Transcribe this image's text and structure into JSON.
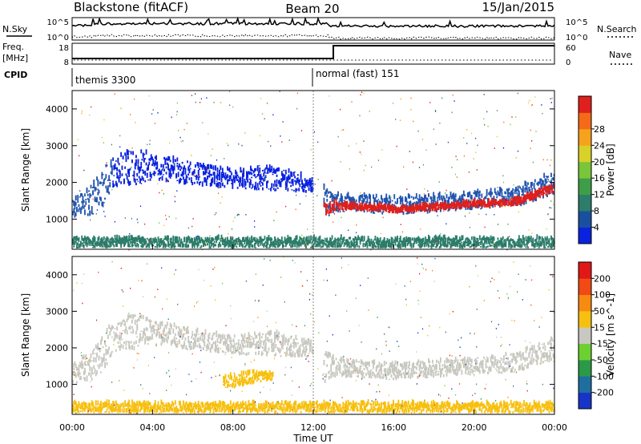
{
  "header": {
    "station": "Blackstone (fitACF)",
    "beam": "Beam 20",
    "date": "15/Jan/2015"
  },
  "strips": {
    "nsky_label": "N.Sky",
    "nsearch_label": "N.Search",
    "noise_ticks_left": [
      "10^5",
      "10^0"
    ],
    "noise_ticks_right": [
      "10^5",
      "10^0"
    ],
    "freq_label": "Freq.",
    "freq_unit": "[MHz]",
    "freq_ticks": [
      "18",
      "8"
    ],
    "nave_label": "Nave",
    "nave_ticks": [
      "60",
      "0"
    ],
    "cpid_label": "CPID",
    "cpid_segments": [
      {
        "start_h": 0,
        "end_h": 12.0,
        "name": "themis 3300"
      },
      {
        "start_h": 12.0,
        "end_h": 24,
        "name": "normal (fast) 151"
      }
    ]
  },
  "chart_data": [
    {
      "type": "heatmap",
      "panel": "power",
      "xlabel": "",
      "ylabel": "Slant Range [km]",
      "xlim": [
        0,
        24
      ],
      "ylim": [
        180,
        4500
      ],
      "yticks": [
        "1000",
        "2000",
        "3000",
        "4000"
      ],
      "colorbar_label": "Power [dB]",
      "colorbar_ticks": [
        "4",
        "8",
        "12",
        "16",
        "20",
        "24",
        "28"
      ],
      "colorbar_colors": [
        "#0a22e0",
        "#1a4fa0",
        "#2c7d6a",
        "#3e9e48",
        "#7bc53b",
        "#d8d12a",
        "#f7a21c",
        "#f46a18",
        "#e0201c"
      ],
      "bands": [
        {
          "x": [
            0.0,
            0.5,
            1.0,
            1.5,
            2.0
          ],
          "lo": [
            1000,
            1050,
            1100,
            1300,
            1800
          ],
          "hi": [
            1500,
            1700,
            1900,
            2300,
            2700
          ],
          "color": "#2255b0"
        },
        {
          "x": [
            12.5,
            13.0,
            14.0,
            16.0,
            18.0,
            20.0,
            22.0,
            24.0
          ],
          "lo": [
            1000,
            1150,
            1180,
            1100,
            1160,
            1250,
            1300,
            1650
          ],
          "hi": [
            1900,
            1700,
            1620,
            1560,
            1620,
            1700,
            1800,
            2250
          ],
          "color": "#2255b0"
        },
        {
          "x": [
            12.5,
            13.0,
            14.0,
            16.0,
            18.0,
            20.0,
            22.0,
            24.0
          ],
          "lo": [
            1050,
            1200,
            1230,
            1150,
            1210,
            1300,
            1340,
            1700
          ],
          "hi": [
            1350,
            1420,
            1380,
            1300,
            1360,
            1440,
            1500,
            1900
          ],
          "color": "#e0201c"
        },
        {
          "x": [
            2.0,
            3.0,
            4.0,
            6.0,
            8.0,
            10.0,
            12.0
          ],
          "lo": [
            1800,
            1900,
            2050,
            1900,
            1800,
            1750,
            1700
          ],
          "hi": [
            2600,
            2900,
            2700,
            2500,
            2300,
            2400,
            2100
          ],
          "color": "#0a22e0"
        },
        {
          "x": [
            0.0,
            24.0
          ],
          "lo": [
            200,
            200
          ],
          "hi": [
            450,
            450
          ],
          "color": "#2c7d6a"
        }
      ]
    },
    {
      "type": "heatmap",
      "panel": "velocity",
      "xlabel": "Time UT",
      "ylabel": "Slant Range [km]",
      "xlim": [
        0,
        24
      ],
      "ylim": [
        180,
        4500
      ],
      "xticks": [
        "00:00",
        "04:00",
        "08:00",
        "12:00",
        "16:00",
        "20:00",
        "00:00"
      ],
      "yticks": [
        "1000",
        "2000",
        "3000",
        "4000"
      ],
      "colorbar_label": "Velocity [m s^-1]",
      "colorbar_ticks": [
        "200",
        "100",
        "50",
        "15",
        "-15",
        "-50",
        "-100",
        "-200"
      ],
      "colorbar_colors": [
        "#1834c8",
        "#1f6ea0",
        "#2a9a48",
        "#6cd030",
        "#c8c8c0",
        "#f7c010",
        "#f78a10",
        "#f24a14",
        "#e01818"
      ],
      "bands": [
        {
          "x": [
            0.0,
            0.5,
            1.0,
            1.5,
            2.0
          ],
          "lo": [
            1000,
            1050,
            1100,
            1300,
            1800
          ],
          "hi": [
            1500,
            1700,
            1900,
            2300,
            2700
          ],
          "color": "#c8c8c0"
        },
        {
          "x": [
            12.5,
            13.0,
            14.0,
            16.0,
            18.0,
            20.0,
            22.0,
            24.0
          ],
          "lo": [
            1000,
            1150,
            1180,
            1100,
            1160,
            1250,
            1300,
            1650
          ],
          "hi": [
            1900,
            1700,
            1620,
            1560,
            1620,
            1700,
            1800,
            2250
          ],
          "color": "#c8c8c0"
        },
        {
          "x": [
            7.5,
            8.0,
            9.0,
            10.0
          ],
          "lo": [
            900,
            880,
            1000,
            1100
          ],
          "hi": [
            1200,
            1250,
            1300,
            1250
          ],
          "color": "#f7c010"
        },
        {
          "x": [
            2.0,
            3.0,
            4.0,
            6.0,
            8.0,
            10.0,
            12.0
          ],
          "lo": [
            1800,
            1900,
            2050,
            1900,
            1800,
            1750,
            1700
          ],
          "hi": [
            2600,
            2900,
            2700,
            2500,
            2300,
            2400,
            2100
          ],
          "color": "#c8c8c0"
        },
        {
          "x": [
            0.0,
            24.0
          ],
          "lo": [
            200,
            200
          ],
          "hi": [
            450,
            450
          ],
          "color": "#f7c010"
        }
      ]
    }
  ]
}
